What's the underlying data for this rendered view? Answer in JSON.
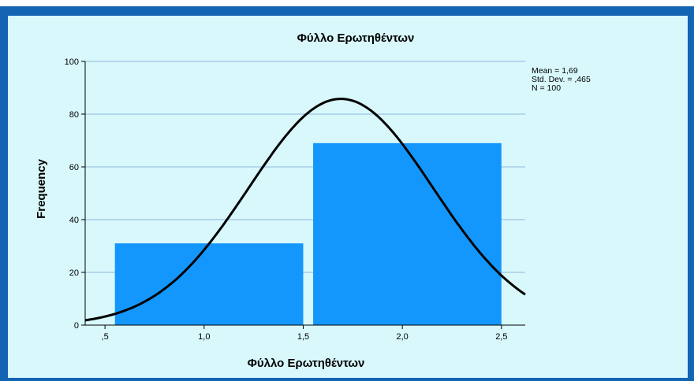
{
  "chart_data": {
    "type": "bar",
    "title": "Φύλλο Ερωτηθέντων",
    "xlabel": "Φύλλο Ερωτηθέντων",
    "ylabel": "Frequency",
    "x_ticks": [
      ",5",
      "1,0",
      "1,5",
      "2,0",
      "2,5"
    ],
    "x_tick_values": [
      0.5,
      1.0,
      1.5,
      2.0,
      2.5
    ],
    "y_ticks": [
      0,
      20,
      40,
      60,
      80,
      100
    ],
    "xlim": [
      0.4,
      2.62
    ],
    "ylim": [
      0,
      100
    ],
    "bars": [
      {
        "x_start": 0.55,
        "x_end": 1.5,
        "value": 31
      },
      {
        "x_start": 1.55,
        "x_end": 2.5,
        "value": 69
      }
    ],
    "normal_curve": {
      "mean": 1.69,
      "sd": 0.465,
      "n": 100,
      "bin_width": 1.0
    },
    "stats_labels": [
      "Mean = 1,69",
      "Std. Dev. = ,465",
      "N = 100"
    ],
    "grid": true,
    "colors": {
      "bar": "#1497fc",
      "curve": "#000000",
      "gridline": "#8eb8dc",
      "plot_background": "#d8f8fc",
      "frame": "#1464b4"
    }
  }
}
